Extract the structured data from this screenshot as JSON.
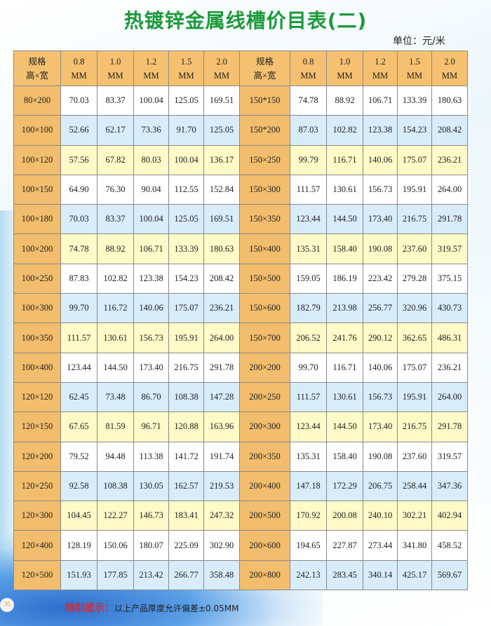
{
  "title": "热镀锌金属线槽价目表(二)",
  "unit": "单位：元/米",
  "header": {
    "spec_line1": "规格",
    "spec_line2": "高×宽",
    "thicknesses": [
      [
        "0.8",
        "MM"
      ],
      [
        "1.0",
        "MM"
      ],
      [
        "1.2",
        "MM"
      ],
      [
        "1.5",
        "MM"
      ],
      [
        "2.0",
        "MM"
      ]
    ]
  },
  "rows": [
    {
      "left": {
        "spec": "80×200",
        "prices": [
          "70.03",
          "83.37",
          "100.04",
          "125.05",
          "169.51"
        ]
      },
      "right": {
        "spec": "150*150",
        "prices": [
          "74.78",
          "88.92",
          "106.71",
          "133.39",
          "180.63"
        ]
      }
    },
    {
      "left": {
        "spec": "100×100",
        "prices": [
          "52.66",
          "62.17",
          "73.36",
          "91.70",
          "125.05"
        ]
      },
      "right": {
        "spec": "150*200",
        "prices": [
          "87.03",
          "102.82",
          "123.38",
          "154.23",
          "208.42"
        ]
      }
    },
    {
      "left": {
        "spec": "100×120",
        "prices": [
          "57.56",
          "67.82",
          "80.03",
          "100.04",
          "136.17"
        ]
      },
      "right": {
        "spec": "150×250",
        "prices": [
          "99.79",
          "116.71",
          "140.06",
          "175.07",
          "236.21"
        ]
      }
    },
    {
      "left": {
        "spec": "100×150",
        "prices": [
          "64.90",
          "76.30",
          "90.04",
          "112.55",
          "152.84"
        ]
      },
      "right": {
        "spec": "150×300",
        "prices": [
          "111.57",
          "130.61",
          "156.73",
          "195.91",
          "264.00"
        ]
      }
    },
    {
      "left": {
        "spec": "100×180",
        "prices": [
          "70.03",
          "83.37",
          "100.04",
          "125.05",
          "169.51"
        ]
      },
      "right": {
        "spec": "150×350",
        "prices": [
          "123.44",
          "144.50",
          "173.40",
          "216.75",
          "291.78"
        ]
      }
    },
    {
      "left": {
        "spec": "100×200",
        "prices": [
          "74.78",
          "88.92",
          "106.71",
          "133.39",
          "180.63"
        ]
      },
      "right": {
        "spec": "150×400",
        "prices": [
          "135.31",
          "158.40",
          "190.08",
          "237.60",
          "319.57"
        ]
      }
    },
    {
      "left": {
        "spec": "100×250",
        "prices": [
          "87.83",
          "102.82",
          "123.38",
          "154.23",
          "208.42"
        ]
      },
      "right": {
        "spec": "150×500",
        "prices": [
          "159.05",
          "186.19",
          "223.42",
          "279.28",
          "375.15"
        ]
      }
    },
    {
      "left": {
        "spec": "100×300",
        "prices": [
          "99.70",
          "116.72",
          "140.06",
          "175.07",
          "236.21"
        ]
      },
      "right": {
        "spec": "150×600",
        "prices": [
          "182.79",
          "213.98",
          "256.77",
          "320.96",
          "430.73"
        ]
      }
    },
    {
      "left": {
        "spec": "100×350",
        "prices": [
          "111.57",
          "130.61",
          "156.73",
          "195.91",
          "264.00"
        ]
      },
      "right": {
        "spec": "150×700",
        "prices": [
          "206.52",
          "241.76",
          "290.12",
          "362.65",
          "486.31"
        ]
      }
    },
    {
      "left": {
        "spec": "100×400",
        "prices": [
          "123.44",
          "144.50",
          "173.40",
          "216.75",
          "291.78"
        ]
      },
      "right": {
        "spec": "200×200",
        "prices": [
          "99.70",
          "116.71",
          "140.06",
          "175.07",
          "236.21"
        ]
      }
    },
    {
      "left": {
        "spec": "120×120",
        "prices": [
          "62.45",
          "73.48",
          "86.70",
          "108.38",
          "147.28"
        ]
      },
      "right": {
        "spec": "200×250",
        "prices": [
          "111.57",
          "130.61",
          "156.73",
          "195.91",
          "264.00"
        ]
      }
    },
    {
      "left": {
        "spec": "120×150",
        "prices": [
          "67.65",
          "81.59",
          "96.71",
          "120.88",
          "163.96"
        ]
      },
      "right": {
        "spec": "200×300",
        "prices": [
          "123.44",
          "144.50",
          "173.40",
          "216.75",
          "291.78"
        ]
      }
    },
    {
      "left": {
        "spec": "120×200",
        "prices": [
          "79.52",
          "94.48",
          "113.38",
          "141.72",
          "191.74"
        ]
      },
      "right": {
        "spec": "200×350",
        "prices": [
          "135.31",
          "158.40",
          "190.08",
          "237.60",
          "319.57"
        ]
      }
    },
    {
      "left": {
        "spec": "120×250",
        "prices": [
          "92.58",
          "108.38",
          "130.05",
          "162.57",
          "219.53"
        ]
      },
      "right": {
        "spec": "200×400",
        "prices": [
          "147.18",
          "172.29",
          "206.75",
          "258.44",
          "347.36"
        ]
      }
    },
    {
      "left": {
        "spec": "120×300",
        "prices": [
          "104.45",
          "122.27",
          "146.73",
          "183.41",
          "247.32"
        ]
      },
      "right": {
        "spec": "200×500",
        "prices": [
          "170.92",
          "200.08",
          "240.10",
          "302.21",
          "402.94"
        ]
      }
    },
    {
      "left": {
        "spec": "120×400",
        "prices": [
          "128.19",
          "150.06",
          "180.07",
          "225.09",
          "302.90"
        ]
      },
      "right": {
        "spec": "200×600",
        "prices": [
          "194.65",
          "227.87",
          "273.44",
          "341.80",
          "458.52"
        ]
      }
    },
    {
      "left": {
        "spec": "120×500",
        "prices": [
          "151.93",
          "177.85",
          "213.42",
          "266.77",
          "358.48"
        ]
      },
      "right": {
        "spec": "200×800",
        "prices": [
          "242.13",
          "283.45",
          "340.14",
          "425.17",
          "569.67"
        ]
      }
    }
  ],
  "note": {
    "label": "特别提示：",
    "text": "以上产品厚度允许偏差±0.05MM"
  },
  "page_number": "36",
  "colors": {
    "title": "#1a9a3a",
    "spec_bg": "#f2bd6c",
    "row_white": "#ffffff",
    "row_blue": "#d8ecfa",
    "row_yellow": "#fffac8",
    "note_label": "#e0282a"
  }
}
